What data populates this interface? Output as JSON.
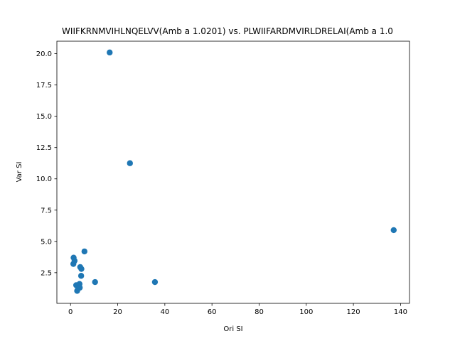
{
  "chart_data": {
    "type": "scatter",
    "title": "WIIFKRNMVIHLNQELVV(Amb a 1.0201) vs. PLWIIFARDMVIRLDRELAI(Amb a 1.0",
    "xlabel": "Ori SI",
    "ylabel": "Var SI",
    "xlim": [
      -5.8,
      143.8
    ],
    "ylim": [
      0.05,
      21.0
    ],
    "xticks": [
      0,
      20,
      40,
      60,
      80,
      100,
      120,
      140
    ],
    "yticks": [
      2.5,
      5.0,
      7.5,
      10.0,
      12.5,
      15.0,
      17.5,
      20.0
    ],
    "ytick_labels": [
      "2.5",
      "5.0",
      "7.5",
      "10.0",
      "12.5",
      "15.0",
      "17.5",
      "20.0"
    ],
    "grid": false,
    "color": "#1f77b4",
    "points": [
      {
        "x": 16.6,
        "y": 20.1
      },
      {
        "x": 25.2,
        "y": 11.25
      },
      {
        "x": 137.1,
        "y": 5.9
      },
      {
        "x": 5.9,
        "y": 4.2
      },
      {
        "x": 1.3,
        "y": 3.7
      },
      {
        "x": 1.7,
        "y": 3.45
      },
      {
        "x": 1.2,
        "y": 3.2
      },
      {
        "x": 4.1,
        "y": 2.95
      },
      {
        "x": 4.6,
        "y": 2.8
      },
      {
        "x": 4.5,
        "y": 2.25
      },
      {
        "x": 10.4,
        "y": 1.75
      },
      {
        "x": 35.8,
        "y": 1.75
      },
      {
        "x": 2.4,
        "y": 1.5
      },
      {
        "x": 3.0,
        "y": 1.4
      },
      {
        "x": 3.8,
        "y": 1.6
      },
      {
        "x": 3.9,
        "y": 1.3
      },
      {
        "x": 2.8,
        "y": 1.05
      }
    ]
  }
}
